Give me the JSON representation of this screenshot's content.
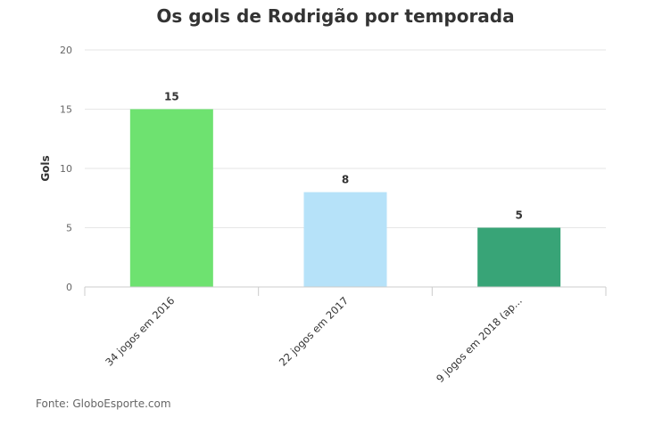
{
  "chart_data": {
    "type": "bar",
    "title": "Os gols de Rodrigão por temporada",
    "xlabel": "",
    "ylabel": "Gols",
    "categories": [
      "34 jogos em 2016",
      "22 jogos em 2017",
      "9 jogos em 2018 (ap..."
    ],
    "values": [
      15,
      8,
      5
    ],
    "value_labels": [
      "15",
      "8",
      "5"
    ],
    "bar_colors": [
      "#6ee270",
      "#b6e2f9",
      "#38a477"
    ],
    "ylim": [
      0,
      20
    ],
    "yticks": [
      "0",
      "5",
      "10",
      "15",
      "20"
    ],
    "grid": true,
    "legend": "none"
  },
  "source": "Fonte: GloboEsporte.com"
}
